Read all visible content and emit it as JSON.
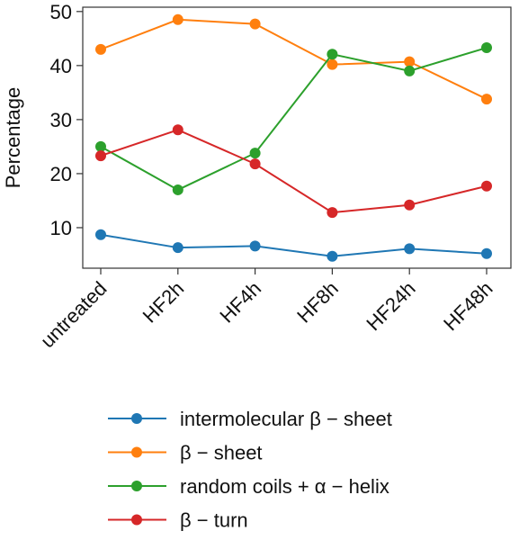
{
  "chart_data": {
    "type": "line",
    "y_label": "Percentage",
    "categories": [
      "untreated",
      "HF2h",
      "HF4h",
      "HF8h",
      "HF24h",
      "HF48h"
    ],
    "series": [
      {
        "name": "intermolecular β − sheet",
        "color": "#1f77b4",
        "values": [
          8.7,
          6.3,
          6.6,
          4.7,
          6.1,
          5.2
        ]
      },
      {
        "name": "β − sheet",
        "color": "#ff7f0e",
        "values": [
          43,
          48.5,
          47.7,
          40.2,
          40.7,
          33.8
        ]
      },
      {
        "name": "random coils + α − helix",
        "color": "#2ca02c",
        "values": [
          25,
          17,
          23.8,
          42.1,
          39,
          43.3
        ]
      },
      {
        "name": "β − turn",
        "color": "#d62728",
        "values": [
          23.3,
          28.1,
          21.8,
          12.8,
          14.2,
          17.7
        ]
      }
    ],
    "ylim": [
      2.5,
      50.8
    ],
    "yticks": [
      10,
      20,
      30,
      40,
      50
    ]
  }
}
